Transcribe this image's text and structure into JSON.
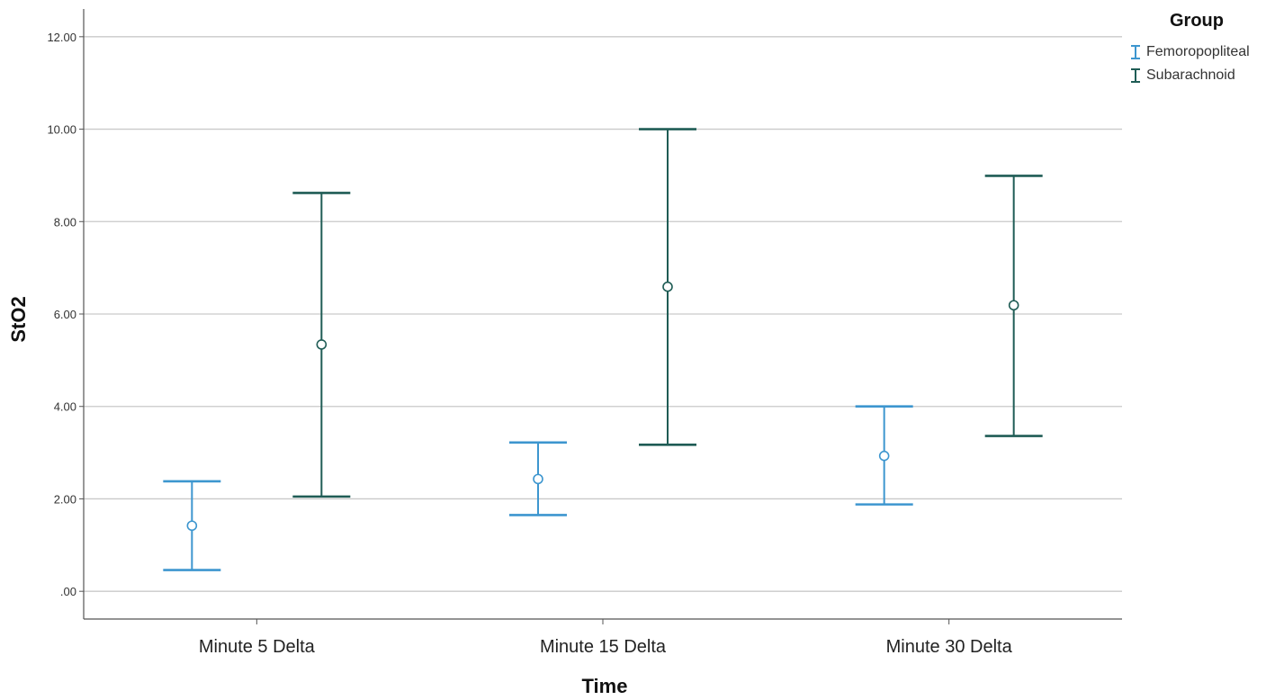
{
  "chart_data": {
    "type": "errorbar",
    "title": "",
    "xlabel": "Time",
    "ylabel": "StO2",
    "ylim": [
      -0.6,
      12.6
    ],
    "yticks": [
      0,
      2,
      4,
      6,
      8,
      10,
      12
    ],
    "ytick_labels": [
      ".00",
      "2.00",
      "4.00",
      "6.00",
      "8.00",
      "10.00",
      "12.00"
    ],
    "grid": true,
    "legend_position": "top-right",
    "legend_title": "Group",
    "categories": [
      "Minute 5 Delta",
      "Minute 15 Delta",
      "Minute 30 Delta"
    ],
    "series": [
      {
        "name": "Femoropopliteal",
        "color": "#3d96cf",
        "points": [
          {
            "mean": 1.42,
            "lower": 0.46,
            "upper": 2.38
          },
          {
            "mean": 2.43,
            "lower": 1.65,
            "upper": 3.22
          },
          {
            "mean": 2.93,
            "lower": 1.88,
            "upper": 4.0
          }
        ]
      },
      {
        "name": "Subarachnoid",
        "color": "#1f5c55",
        "points": [
          {
            "mean": 5.34,
            "lower": 2.05,
            "upper": 8.62
          },
          {
            "mean": 6.59,
            "lower": 3.17,
            "upper": 10.0
          },
          {
            "mean": 6.19,
            "lower": 3.36,
            "upper": 8.99
          }
        ]
      }
    ]
  }
}
